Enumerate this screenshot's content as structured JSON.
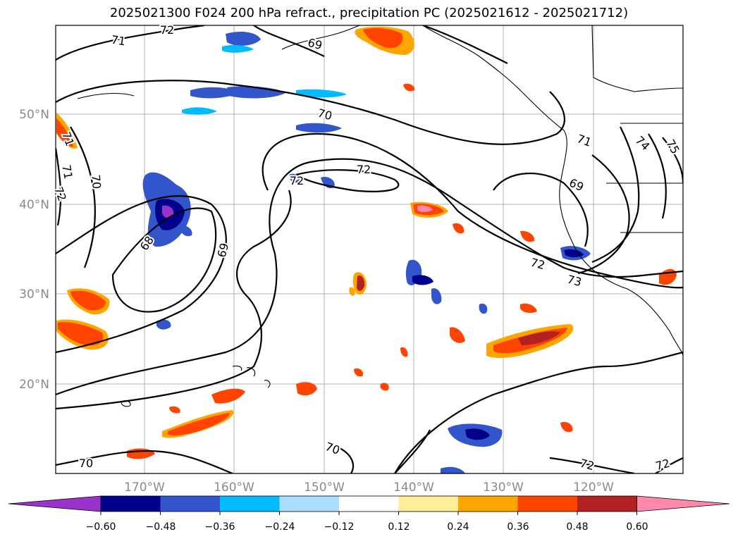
{
  "title": "2025021300 F024 200 hPa refract., precipitation PC (2025021612 - 2025021712)",
  "map": {
    "lat_ticks": [
      "50°N",
      "40°N",
      "30°N",
      "20°N"
    ],
    "lon_ticks": [
      "170°W",
      "160°W",
      "150°W",
      "140°W",
      "130°W",
      "120°W"
    ],
    "gridlines": true,
    "contour_labels": [
      "72",
      "71",
      "69",
      "70",
      "71",
      "71",
      "72",
      "70",
      "72",
      "72",
      "68",
      "69",
      "70",
      "71",
      "74",
      "75",
      "69",
      "72",
      "73",
      "70",
      "72",
      "72"
    ]
  },
  "colorbar": {
    "ticks": [
      "−0.60",
      "−0.48",
      "−0.36",
      "−0.24",
      "−0.12",
      "0.12",
      "0.24",
      "0.36",
      "0.48",
      "0.60"
    ],
    "colors": [
      "#9933cc",
      "#00008b",
      "#3355cc",
      "#00bbff",
      "#aaddff",
      "#ffffff",
      "#ffee99",
      "#ffa500",
      "#ff4400",
      "#b22222",
      "#ff88aa"
    ],
    "extend": "both"
  }
}
